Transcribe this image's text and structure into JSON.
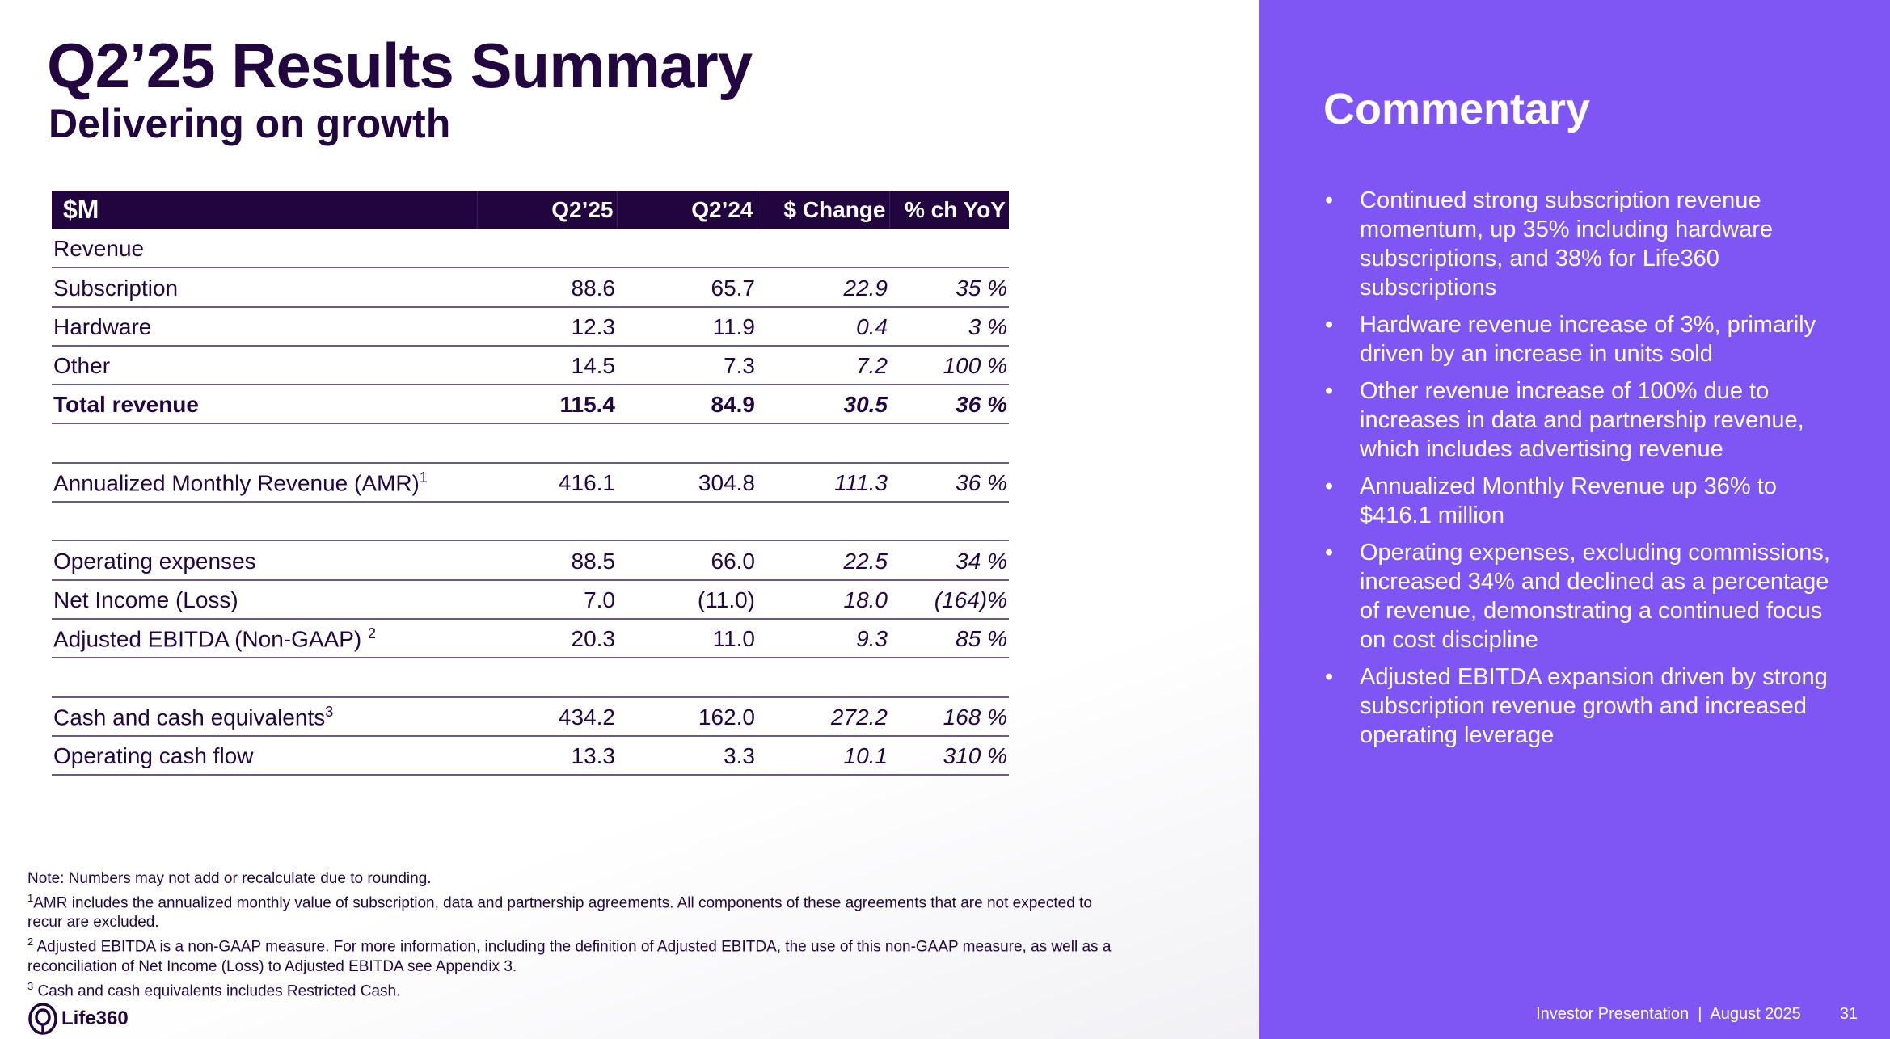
{
  "title": "Q2’25 Results Summary",
  "subtitle": "Delivering on growth",
  "table": {
    "headers": [
      "$M",
      "Q2’25",
      "Q2’24",
      "$ Change",
      "% ch YoY"
    ],
    "rows": [
      {
        "label": "Revenue",
        "values": [
          "",
          "",
          "",
          ""
        ]
      },
      {
        "label": "Subscription",
        "values": [
          "88.6",
          "65.7",
          "22.9",
          "35 %"
        ]
      },
      {
        "label": "Hardware",
        "values": [
          "12.3",
          "11.9",
          "0.4",
          "3 %"
        ]
      },
      {
        "label": "Other",
        "values": [
          "14.5",
          "7.3",
          "7.2",
          "100 %"
        ]
      },
      {
        "label": "Total revenue",
        "values": [
          "115.4",
          "84.9",
          "30.5",
          "36 %"
        ],
        "bold": true
      },
      {
        "label": "",
        "values": [
          "",
          "",
          "",
          ""
        ]
      },
      {
        "label": "Annualized Monthly Revenue (AMR)",
        "sup": "1",
        "values": [
          "416.1",
          "304.8",
          "111.3",
          "36 %"
        ]
      },
      {
        "label": "",
        "values": [
          "",
          "",
          "",
          ""
        ]
      },
      {
        "label": "Operating expenses",
        "values": [
          "88.5",
          "66.0",
          "22.5",
          "34 %"
        ]
      },
      {
        "label": "Net Income (Loss)",
        "values": [
          "7.0",
          "(11.0)",
          "18.0",
          "(164)%"
        ]
      },
      {
        "label": "Adjusted EBITDA (Non-GAAP) ",
        "sup": "2",
        "values": [
          "20.3",
          "11.0",
          "9.3",
          "85 %"
        ]
      },
      {
        "label": "",
        "values": [
          "",
          "",
          "",
          ""
        ]
      },
      {
        "label": "Cash and cash equivalents",
        "sup": "3",
        "values": [
          "434.2",
          "162.0",
          "272.2",
          "168 %"
        ]
      },
      {
        "label": "Operating cash flow",
        "values": [
          "13.3",
          "3.3",
          "10.1",
          "310 %"
        ]
      }
    ]
  },
  "notes": [
    {
      "sup": "",
      "text": "Note: Numbers may not add or recalculate due to rounding."
    },
    {
      "sup": "1",
      "text": "AMR includes the annualized monthly value of subscription, data and partnership agreements. All components of these agreements that are not expected to recur are excluded."
    },
    {
      "sup": "2",
      "text": " Adjusted EBITDA is a non-GAAP measure. For more information, including the definition of Adjusted EBITDA, the use of this non-GAAP measure, as well as a reconciliation of Net Income (Loss) to Adjusted EBITDA see Appendix 3."
    },
    {
      "sup": "3",
      "text": " Cash and cash equivalents includes Restricted Cash."
    }
  ],
  "logo": "Life360",
  "commentary": {
    "title": "Commentary",
    "bullets": [
      "Continued strong subscription revenue momentum, up 35% including hardware subscriptions, and 38% for Life360 subscriptions",
      "Hardware revenue increase of 3%, primarily driven by an increase in units sold",
      "Other revenue increase of 100% due to increases in data and partnership revenue, which includes advertising revenue",
      "Annualized Monthly Revenue up 36% to $416.1 million",
      "Operating expenses, excluding commissions, increased 34% and declined as a percentage of revenue, demonstrating a continued focus on cost discipline",
      "Adjusted EBITDA expansion driven by strong subscription revenue growth and increased operating leverage"
    ]
  },
  "footer": {
    "text": "Investor Presentation  |  August 2025",
    "page": "31"
  },
  "colors": {
    "dark": "#22053f",
    "accent": "#7f55f3"
  }
}
